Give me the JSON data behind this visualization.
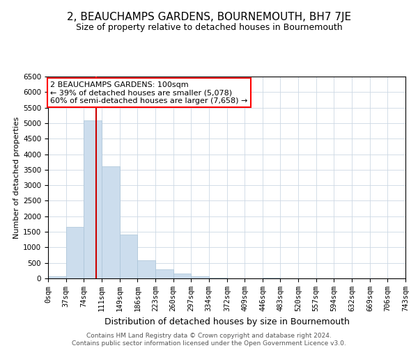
{
  "title": "2, BEAUCHAMPS GARDENS, BOURNEMOUTH, BH7 7JE",
  "subtitle": "Size of property relative to detached houses in Bournemouth",
  "xlabel": "Distribution of detached houses by size in Bournemouth",
  "ylabel": "Number of detached properties",
  "footer_line1": "Contains HM Land Registry data © Crown copyright and database right 2024.",
  "footer_line2": "Contains public sector information licensed under the Open Government Licence v3.0.",
  "annotation_line1": "2 BEAUCHAMPS GARDENS: 100sqm",
  "annotation_line2": "← 39% of detached houses are smaller (5,078)",
  "annotation_line3": "60% of semi-detached houses are larger (7,658) →",
  "property_size": 100,
  "bins": [
    0,
    37,
    74,
    111,
    149,
    186,
    223,
    260,
    297,
    334,
    372,
    409,
    446,
    483,
    520,
    557,
    594,
    632,
    669,
    706,
    743
  ],
  "bin_labels": [
    "0sqm",
    "37sqm",
    "74sqm",
    "111sqm",
    "149sqm",
    "186sqm",
    "223sqm",
    "260sqm",
    "297sqm",
    "334sqm",
    "372sqm",
    "409sqm",
    "446sqm",
    "483sqm",
    "520sqm",
    "557sqm",
    "594sqm",
    "632sqm",
    "669sqm",
    "706sqm",
    "743sqm"
  ],
  "counts": [
    75,
    1650,
    5080,
    3600,
    1420,
    580,
    300,
    150,
    60,
    30,
    10,
    0,
    30,
    0,
    0,
    0,
    0,
    0,
    0,
    0
  ],
  "bar_color": "#ccdded",
  "bar_edge_color": "#aac4d8",
  "red_line_color": "#cc0000",
  "grid_color": "#ccd8e4",
  "background_color": "#ffffff",
  "ylim": [
    0,
    6500
  ],
  "yticks": [
    0,
    500,
    1000,
    1500,
    2000,
    2500,
    3000,
    3500,
    4000,
    4500,
    5000,
    5500,
    6000,
    6500
  ],
  "title_fontsize": 11,
  "subtitle_fontsize": 9,
  "xlabel_fontsize": 9,
  "ylabel_fontsize": 8,
  "tick_fontsize": 7.5,
  "footer_fontsize": 6.5,
  "ann_fontsize": 8
}
